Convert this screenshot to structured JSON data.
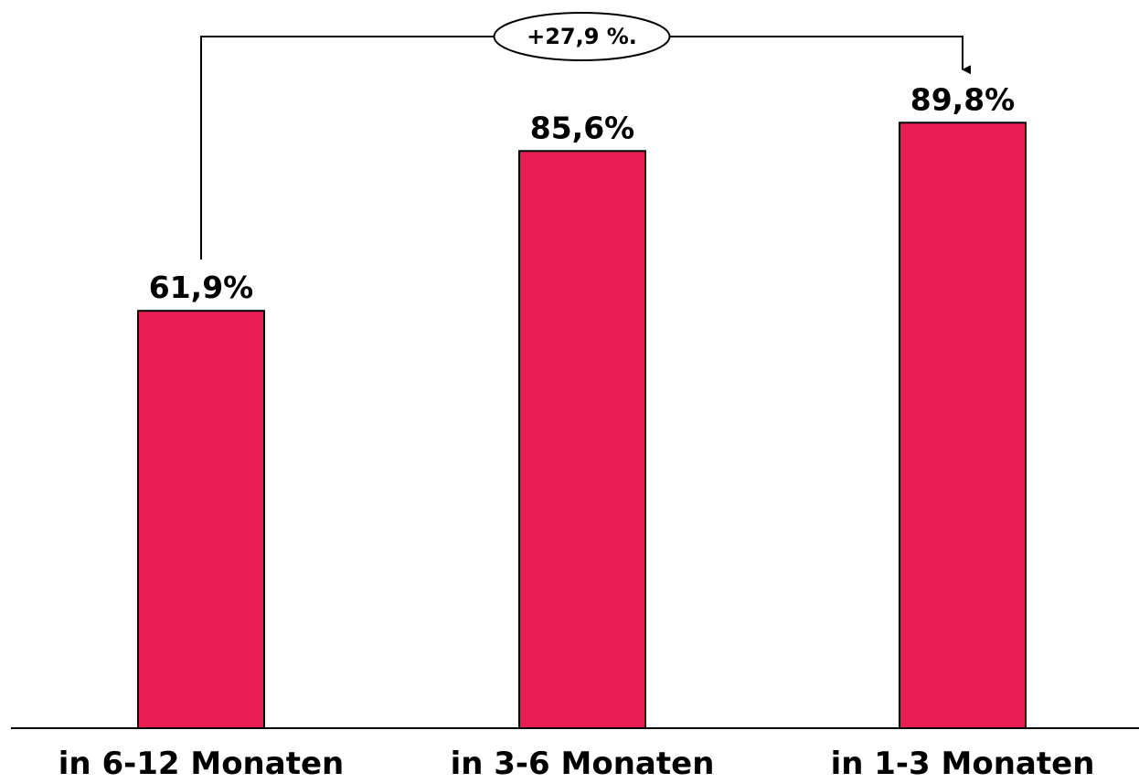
{
  "chart_data": {
    "type": "bar",
    "categories": [
      "in 6-12 Monaten",
      "in 3-6 Monaten",
      "in 1-3 Monaten"
    ],
    "values": [
      61.9,
      85.6,
      89.8
    ],
    "value_labels": [
      "61,9%",
      "85,6%",
      "89,8%"
    ],
    "bar_color": "#E81E55",
    "ylim": [
      0,
      100
    ],
    "grid": false,
    "annotation": {
      "text": "+27,9 %.",
      "from_category": "in 6-12 Monaten",
      "to_category": "in 1-3 Monaten"
    }
  }
}
